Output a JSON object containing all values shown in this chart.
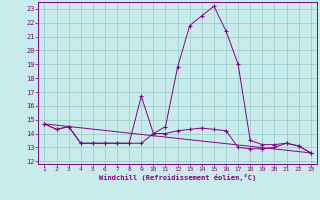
{
  "xlabel": "Windchill (Refroidissement éolien,°C)",
  "x_ticks": [
    1,
    2,
    3,
    4,
    5,
    6,
    7,
    8,
    9,
    10,
    11,
    12,
    13,
    14,
    15,
    16,
    17,
    18,
    19,
    20,
    21,
    22,
    23
  ],
  "ylim": [
    11.8,
    23.5
  ],
  "xlim": [
    0.5,
    23.5
  ],
  "yticks": [
    12,
    13,
    14,
    15,
    16,
    17,
    18,
    19,
    20,
    21,
    22,
    23
  ],
  "background_color": "#c8ecec",
  "grid_color": "#9ecece",
  "line_color": "#880088",
  "lines": [
    {
      "x": [
        1,
        2,
        3,
        4,
        5,
        6,
        7,
        8,
        9,
        10,
        11,
        12,
        13,
        14,
        15,
        16,
        17,
        18,
        19,
        20,
        21,
        22,
        23
      ],
      "y": [
        14.7,
        14.3,
        14.5,
        13.3,
        13.3,
        13.3,
        13.3,
        13.3,
        16.7,
        14.0,
        14.0,
        14.2,
        14.3,
        14.4,
        14.3,
        14.2,
        13.0,
        12.9,
        12.9,
        13.0,
        13.3,
        13.1,
        12.6
      ]
    },
    {
      "x": [
        1,
        2,
        3,
        4,
        5,
        6,
        7,
        8,
        9,
        10,
        11,
        12,
        13,
        14,
        15,
        16,
        17,
        18,
        19,
        20,
        21,
        22,
        23
      ],
      "y": [
        14.7,
        14.3,
        14.5,
        13.3,
        13.3,
        13.3,
        13.3,
        13.3,
        13.3,
        14.0,
        14.5,
        18.8,
        21.8,
        22.5,
        23.2,
        21.4,
        19.0,
        13.5,
        13.2,
        13.2,
        13.3,
        13.1,
        12.6
      ]
    },
    {
      "x": [
        1,
        23
      ],
      "y": [
        14.7,
        12.6
      ]
    }
  ]
}
